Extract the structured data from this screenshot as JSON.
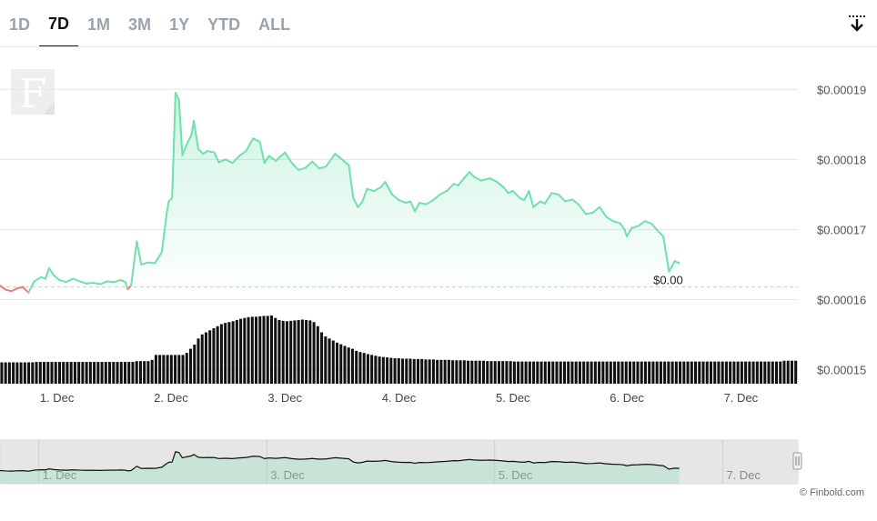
{
  "tabs": [
    {
      "label": "1D",
      "active": false
    },
    {
      "label": "7D",
      "active": true
    },
    {
      "label": "1M",
      "active": false
    },
    {
      "label": "3M",
      "active": false
    },
    {
      "label": "1Y",
      "active": false
    },
    {
      "label": "YTD",
      "active": false
    },
    {
      "label": "ALL",
      "active": false
    }
  ],
  "icons": {
    "download": "download-icon",
    "logo": "finbold-logo-icon"
  },
  "logo_letter": "F",
  "credit": "© Finbold.com",
  "colors": {
    "up": "#6fe0ab",
    "down": "#f07a7a",
    "volume": "#111111",
    "navigator_fill": "#dcdcdc"
  },
  "chart_data": {
    "type": "line",
    "ylim": [
      0.000148,
      0.000196
    ],
    "yticks": [
      0.00015,
      0.00016,
      0.00017,
      0.00018,
      0.00019
    ],
    "ytick_labels": [
      "$0.00015",
      "$0.00016",
      "$0.00017",
      "$0.00018",
      "$0.00019"
    ],
    "xlim": [
      -0.5,
      6.5
    ],
    "xticks": [
      0,
      1,
      2,
      3,
      4,
      5,
      6
    ],
    "xtick_labels": [
      "1. Dec",
      "2. Dec",
      "3. Dec",
      "4. Dec",
      "5. Dec",
      "6. Dec",
      "7. Dec"
    ],
    "baseline": 0.0001618,
    "current_label": "$0.00",
    "grid": true,
    "series": [
      {
        "values": [
          [
            -0.5,
            0.000162
          ],
          [
            -0.45,
            0.0001614
          ],
          [
            -0.4,
            0.0001612
          ],
          [
            -0.35,
            0.0001616
          ],
          [
            -0.3,
            0.0001618
          ],
          [
            -0.25,
            0.000161
          ],
          [
            -0.2,
            0.0001626
          ],
          [
            -0.14,
            0.0001632
          ],
          [
            -0.1,
            0.000163
          ],
          [
            -0.07,
            0.0001645
          ],
          [
            -0.03,
            0.0001635
          ],
          [
            0.02,
            0.0001628
          ],
          [
            0.08,
            0.0001625
          ],
          [
            0.14,
            0.000163
          ],
          [
            0.2,
            0.0001626
          ],
          [
            0.26,
            0.0001623
          ],
          [
            0.32,
            0.0001624
          ],
          [
            0.38,
            0.0001622
          ],
          [
            0.44,
            0.0001626
          ],
          [
            0.5,
            0.0001625
          ],
          [
            0.56,
            0.0001628
          ],
          [
            0.6,
            0.0001625
          ],
          [
            0.62,
            0.0001615
          ],
          [
            0.65,
            0.000162
          ],
          [
            0.7,
            0.0001683
          ],
          [
            0.74,
            0.000165
          ],
          [
            0.8,
            0.0001653
          ],
          [
            0.86,
            0.0001652
          ],
          [
            0.92,
            0.0001668
          ],
          [
            0.96,
            0.000172
          ],
          [
            0.98,
            0.000174
          ],
          [
            1.01,
            0.0001745
          ],
          [
            1.04,
            0.0001895
          ],
          [
            1.07,
            0.0001885
          ],
          [
            1.1,
            0.0001806
          ],
          [
            1.14,
            0.0001822
          ],
          [
            1.18,
            0.0001835
          ],
          [
            1.2,
            0.0001855
          ],
          [
            1.24,
            0.0001815
          ],
          [
            1.28,
            0.0001808
          ],
          [
            1.32,
            0.0001812
          ],
          [
            1.38,
            0.000181
          ],
          [
            1.42,
            0.0001796
          ],
          [
            1.48,
            0.00018
          ],
          [
            1.54,
            0.0001795
          ],
          [
            1.6,
            0.0001805
          ],
          [
            1.66,
            0.0001812
          ],
          [
            1.72,
            0.000183
          ],
          [
            1.78,
            0.0001825
          ],
          [
            1.82,
            0.0001795
          ],
          [
            1.86,
            0.0001805
          ],
          [
            1.92,
            0.0001798
          ],
          [
            2.0,
            0.000181
          ],
          [
            2.06,
            0.0001795
          ],
          [
            2.12,
            0.0001785
          ],
          [
            2.18,
            0.0001788
          ],
          [
            2.24,
            0.0001797
          ],
          [
            2.3,
            0.0001787
          ],
          [
            2.36,
            0.000179
          ],
          [
            2.44,
            0.0001808
          ],
          [
            2.5,
            0.00018
          ],
          [
            2.56,
            0.0001792
          ],
          [
            2.6,
            0.0001745
          ],
          [
            2.64,
            0.0001732
          ],
          [
            2.68,
            0.000174
          ],
          [
            2.72,
            0.0001758
          ],
          [
            2.78,
            0.0001755
          ],
          [
            2.84,
            0.000176
          ],
          [
            2.88,
            0.0001768
          ],
          [
            2.94,
            0.000175
          ],
          [
            3.0,
            0.0001742
          ],
          [
            3.06,
            0.0001738
          ],
          [
            3.1,
            0.000174
          ],
          [
            3.14,
            0.0001726
          ],
          [
            3.18,
            0.0001738
          ],
          [
            3.24,
            0.0001736
          ],
          [
            3.3,
            0.0001742
          ],
          [
            3.36,
            0.000175
          ],
          [
            3.42,
            0.0001755
          ],
          [
            3.48,
            0.0001765
          ],
          [
            3.52,
            0.0001763
          ],
          [
            3.58,
            0.0001775
          ],
          [
            3.62,
            0.0001782
          ],
          [
            3.66,
            0.0001775
          ],
          [
            3.72,
            0.000177
          ],
          [
            3.8,
            0.0001773
          ],
          [
            3.86,
            0.0001768
          ],
          [
            3.92,
            0.000176
          ],
          [
            3.96,
            0.0001752
          ],
          [
            4.0,
            0.0001755
          ],
          [
            4.06,
            0.0001745
          ],
          [
            4.1,
            0.0001742
          ],
          [
            4.14,
            0.0001755
          ],
          [
            4.18,
            0.0001732
          ],
          [
            4.24,
            0.000174
          ],
          [
            4.28,
            0.0001737
          ],
          [
            4.34,
            0.0001752
          ],
          [
            4.4,
            0.000175
          ],
          [
            4.46,
            0.000174
          ],
          [
            4.52,
            0.0001743
          ],
          [
            4.58,
            0.0001735
          ],
          [
            4.64,
            0.0001722
          ],
          [
            4.7,
            0.0001724
          ],
          [
            4.76,
            0.0001732
          ],
          [
            4.82,
            0.0001718
          ],
          [
            4.88,
            0.0001712
          ],
          [
            4.94,
            0.0001709
          ],
          [
            4.98,
            0.00017
          ],
          [
            5.0,
            0.000169
          ],
          [
            5.04,
            0.0001702
          ],
          [
            5.1,
            0.0001705
          ],
          [
            5.16,
            0.0001712
          ],
          [
            5.22,
            0.0001708
          ],
          [
            5.26,
            0.00017
          ],
          [
            5.32,
            0.000169
          ],
          [
            5.37,
            0.000164
          ],
          [
            5.42,
            0.0001655
          ],
          [
            5.46,
            0.0001652
          ]
        ]
      }
    ],
    "volume": [
      0.52,
      0.52,
      0.52,
      0.52,
      0.52,
      0.52,
      0.52,
      0.52,
      0.52,
      0.53,
      0.53,
      0.53,
      0.53,
      0.53,
      0.53,
      0.53,
      0.53,
      0.53,
      0.53,
      0.53,
      0.53,
      0.53,
      0.53,
      0.53,
      0.53,
      0.53,
      0.53,
      0.53,
      0.53,
      0.53,
      0.53,
      0.53,
      0.53,
      0.53,
      0.53,
      0.55,
      0.55,
      0.55,
      0.55,
      0.58,
      0.7,
      0.7,
      0.7,
      0.7,
      0.7,
      0.7,
      0.7,
      0.7,
      0.75,
      0.85,
      0.95,
      1.1,
      1.2,
      1.25,
      1.3,
      1.35,
      1.4,
      1.45,
      1.48,
      1.5,
      1.52,
      1.55,
      1.58,
      1.6,
      1.62,
      1.63,
      1.63,
      1.64,
      1.65,
      1.65,
      1.66,
      1.6,
      1.55,
      1.53,
      1.52,
      1.53,
      1.54,
      1.55,
      1.56,
      1.55,
      1.54,
      1.5,
      1.4,
      1.25,
      1.15,
      1.1,
      1.05,
      1.0,
      0.96,
      0.92,
      0.88,
      0.85,
      0.8,
      0.77,
      0.75,
      0.72,
      0.7,
      0.68,
      0.66,
      0.65,
      0.64,
      0.63,
      0.62,
      0.62,
      0.61,
      0.61,
      0.61,
      0.6,
      0.6,
      0.6,
      0.59,
      0.59,
      0.59,
      0.58,
      0.58,
      0.58,
      0.58,
      0.57,
      0.57,
      0.57,
      0.57,
      0.56,
      0.56,
      0.56,
      0.56,
      0.56,
      0.55,
      0.55,
      0.55,
      0.55,
      0.55,
      0.55,
      0.55,
      0.54,
      0.54,
      0.54,
      0.54,
      0.54,
      0.54,
      0.54,
      0.54,
      0.54,
      0.54,
      0.54,
      0.54,
      0.54,
      0.54,
      0.54,
      0.54,
      0.54,
      0.54,
      0.54,
      0.54,
      0.54,
      0.54,
      0.54,
      0.54,
      0.54,
      0.54,
      0.54,
      0.54,
      0.54,
      0.54,
      0.54,
      0.54,
      0.54,
      0.54,
      0.54,
      0.54,
      0.54,
      0.54,
      0.54,
      0.54,
      0.54,
      0.54,
      0.54,
      0.54,
      0.54,
      0.54,
      0.54,
      0.54,
      0.54,
      0.54,
      0.54,
      0.54,
      0.54,
      0.54,
      0.54,
      0.54,
      0.54,
      0.54,
      0.54,
      0.54,
      0.54,
      0.54,
      0.54,
      0.54,
      0.54,
      0.54,
      0.54,
      0.54,
      0.54,
      0.54,
      0.56,
      0.56,
      0.56,
      0.56
    ],
    "navigator_xticks": [
      0,
      2,
      4,
      6
    ],
    "navigator_xtick_labels": [
      "1. Dec",
      "3. Dec",
      "5. Dec",
      "7. Dec"
    ]
  }
}
